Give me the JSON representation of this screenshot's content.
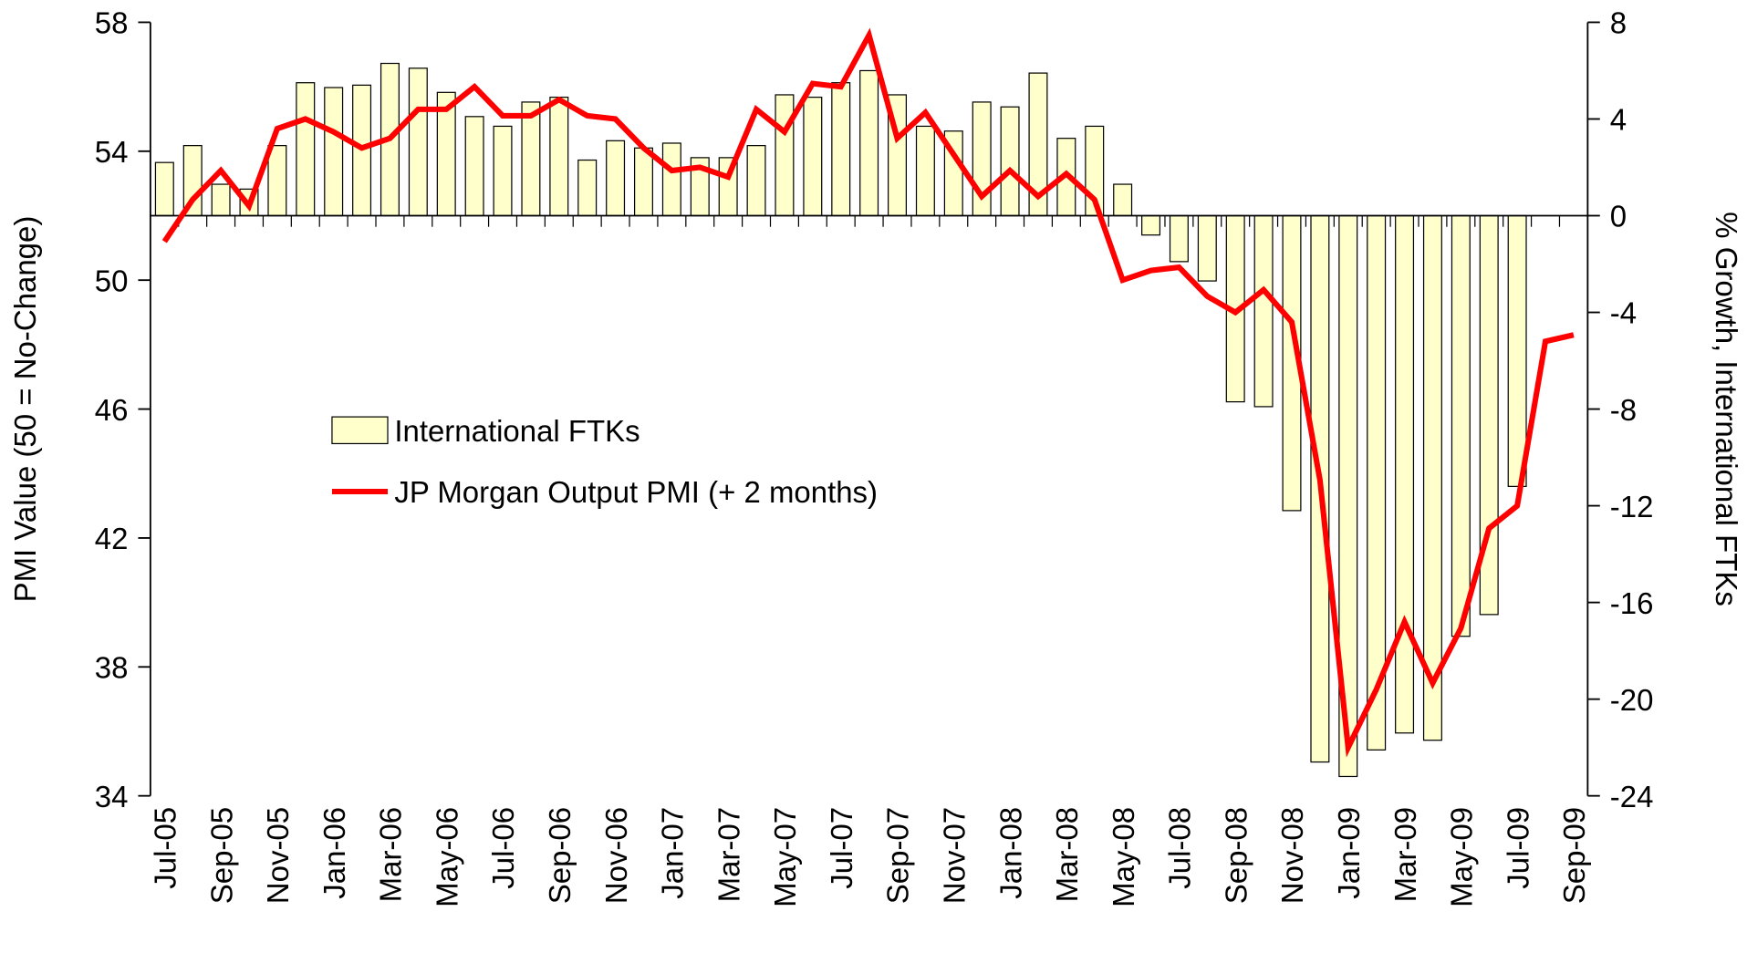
{
  "chart_data": {
    "type": "bar-line",
    "categories": [
      "Jul-05",
      null,
      "Sep-05",
      null,
      "Nov-05",
      null,
      "Jan-06",
      null,
      "Mar-06",
      null,
      "May-06",
      null,
      "Jul-06",
      null,
      "Sep-06",
      null,
      "Nov-06",
      null,
      "Jan-07",
      null,
      "Mar-07",
      null,
      "May-07",
      null,
      "Jul-07",
      null,
      "Sep-07",
      null,
      "Nov-07",
      null,
      "Jan-08",
      null,
      "Mar-08",
      null,
      "May-08",
      null,
      "Jul-08",
      null,
      "Sep-08",
      null,
      "Nov-08",
      null,
      "Jan-09",
      null,
      "Mar-09",
      null,
      "May-09",
      null,
      "Jul-09",
      null,
      "Sep-09"
    ],
    "ylabel": "PMI Value (50 = No-Change)",
    "y2label": "% Growth, International FTKs",
    "ylim": [
      34,
      58
    ],
    "yticks": [
      34,
      38,
      42,
      46,
      50,
      54,
      58
    ],
    "y2lim": [
      -24,
      8
    ],
    "y2ticks": [
      -24,
      -20,
      -16,
      -12,
      -8,
      -4,
      0,
      4,
      8
    ],
    "legend": "center-left",
    "series": [
      {
        "name": "International FTKs",
        "type": "bar",
        "axis": "y2",
        "color": "#ffffcc",
        "values": [
          2.2,
          2.9,
          1.3,
          1.1,
          2.9,
          5.5,
          5.3,
          5.4,
          6.3,
          6.1,
          5.1,
          4.1,
          3.7,
          4.7,
          4.9,
          2.3,
          3.1,
          2.8,
          3.0,
          2.4,
          2.4,
          2.9,
          5.0,
          4.9,
          5.5,
          6.0,
          5.0,
          3.7,
          3.5,
          4.7,
          4.5,
          5.9,
          3.2,
          3.7,
          1.3,
          -0.8,
          -1.9,
          -2.7,
          -7.7,
          -7.9,
          -12.2,
          -22.6,
          -23.2,
          -22.1,
          -21.4,
          -21.7,
          -17.4,
          -16.5,
          -11.2,
          null,
          null
        ]
      },
      {
        "name": "JP Morgan Output PMI (+ 2 months)",
        "type": "line",
        "color": "#ff0000",
        "values": [
          51.2,
          52.5,
          53.4,
          52.3,
          54.7,
          55.0,
          54.6,
          54.1,
          54.4,
          55.3,
          55.3,
          56.0,
          55.1,
          55.1,
          55.6,
          55.1,
          55.0,
          54.1,
          53.4,
          53.5,
          53.2,
          55.3,
          54.6,
          56.1,
          56.0,
          57.6,
          54.4,
          55.2,
          53.9,
          52.6,
          53.4,
          52.6,
          53.3,
          52.5,
          50.0,
          50.3,
          50.4,
          49.5,
          49.0,
          49.7,
          48.7,
          43.8,
          35.5,
          37.3,
          39.4,
          37.5,
          39.2,
          42.3,
          43.0,
          48.1,
          48.3
        ]
      }
    ]
  }
}
